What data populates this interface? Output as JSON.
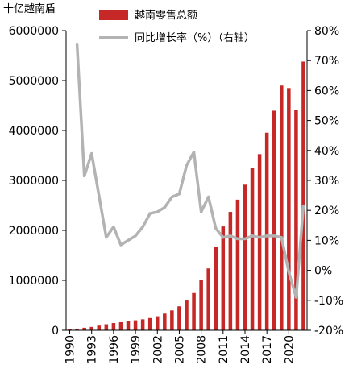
{
  "chart_data": {
    "type": "bar+line",
    "unit_label": "十亿越南盾",
    "categories": [
      1990,
      1991,
      1992,
      1993,
      1994,
      1995,
      1996,
      1997,
      1998,
      1999,
      2000,
      2001,
      2002,
      2003,
      2004,
      2005,
      2006,
      2007,
      2008,
      2009,
      2010,
      2011,
      2012,
      2013,
      2014,
      2015,
      2016,
      2017,
      2018,
      2019,
      2020,
      2021,
      2022
    ],
    "x_tick_labels": [
      "1990",
      "1993",
      "1996",
      "1999",
      "2002",
      "2005",
      "2008",
      "2011",
      "2014",
      "2017",
      "2020"
    ],
    "series": [
      {
        "name": "越南零售总额",
        "kind": "bar",
        "axis": "left",
        "color": "#c62828",
        "values": [
          20000,
          33000,
          50000,
          67000,
          94000,
          121000,
          145000,
          162000,
          185000,
          200000,
          220000,
          245000,
          281000,
          334000,
          398000,
          480000,
          596000,
          746000,
          1007000,
          1238000,
          1677000,
          2079000,
          2370000,
          2615000,
          2915000,
          3242000,
          3527000,
          3956000,
          4396000,
          4899000,
          4850000,
          4410000,
          5380000
        ]
      },
      {
        "name": "同比增长率（%）（右轴）",
        "kind": "line",
        "axis": "right",
        "color": "#b3b3b3",
        "values": [
          null,
          75.5,
          31.5,
          39,
          25,
          11,
          14.5,
          8.5,
          10,
          11.5,
          14.5,
          19,
          19.5,
          21,
          24.5,
          25.5,
          35,
          39.5,
          19.5,
          24.5,
          14,
          11,
          11.5,
          10.5,
          10.5,
          11.5,
          11,
          11.5,
          11.5,
          11,
          -0.5,
          -9,
          21.5
        ]
      }
    ],
    "y_left": {
      "min": 0,
      "max": 6000000,
      "ticks": [
        0,
        1000000,
        2000000,
        3000000,
        4000000,
        5000000,
        6000000
      ]
    },
    "y_right": {
      "min": -20,
      "max": 80,
      "ticks": [
        -20,
        -10,
        0,
        10,
        20,
        30,
        40,
        50,
        60,
        70,
        80
      ],
      "tick_labels": [
        "-20%",
        "-10%",
        "0%",
        "10%",
        "20%",
        "30%",
        "40%",
        "50%",
        "60%",
        "70%",
        "80%"
      ]
    },
    "legend_position": "top-center",
    "grid": false
  }
}
